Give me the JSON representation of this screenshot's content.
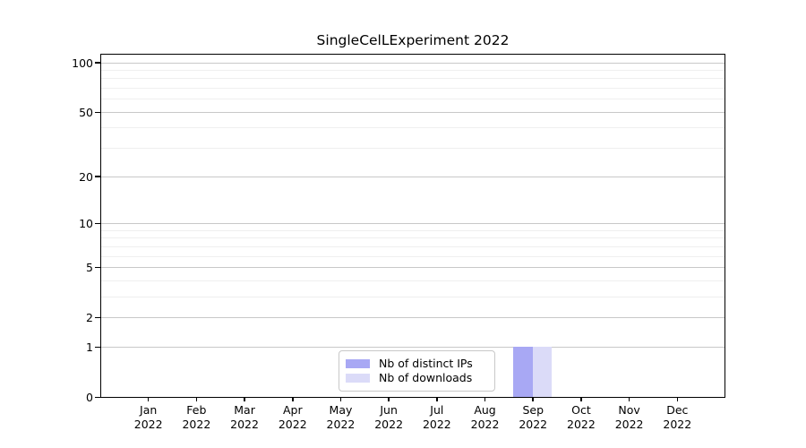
{
  "page": {
    "background": "#ffffff"
  },
  "chart_data": {
    "type": "bar",
    "title": "SingleCelLExperiment 2022",
    "categories": [
      "Jan 2022",
      "Feb 2022",
      "Mar 2022",
      "Apr 2022",
      "May 2022",
      "Jun 2022",
      "Jul 2022",
      "Aug 2022",
      "Sep 2022",
      "Oct 2022",
      "Nov 2022",
      "Dec 2022"
    ],
    "x_tick_months": [
      "Jan",
      "Feb",
      "Mar",
      "Apr",
      "May",
      "Jun",
      "Jul",
      "Aug",
      "Sep",
      "Oct",
      "Nov",
      "Dec"
    ],
    "x_tick_year": "2022",
    "series": [
      {
        "name": "Nb of distinct IPs",
        "color": "#a8a8f4",
        "values": [
          0,
          0,
          0,
          0,
          0,
          0,
          0,
          0,
          1,
          0,
          0,
          0
        ]
      },
      {
        "name": "Nb of downloads",
        "color": "#dbdbf8",
        "values": [
          0,
          0,
          0,
          0,
          0,
          0,
          0,
          0,
          1,
          0,
          0,
          0
        ]
      }
    ],
    "y_axis": {
      "scale": "log10(1+y)",
      "major_ticks": [
        0,
        1,
        2,
        5,
        10,
        20,
        50,
        100
      ],
      "minor_gridlines": [
        3,
        4,
        6,
        7,
        8,
        9,
        30,
        40,
        60,
        70,
        80,
        90
      ],
      "ylim": [
        0,
        113
      ]
    },
    "legend": {
      "position": "lower center",
      "entries": [
        "Nb of distinct IPs",
        "Nb of downloads"
      ]
    },
    "grid": true
  },
  "colors": {
    "major_grid": "#c8c8c8",
    "minor_grid": "#efefef",
    "spine": "#000000",
    "legend_border": "#c8c8c8",
    "text": "#000000",
    "background": "#ffffff"
  }
}
